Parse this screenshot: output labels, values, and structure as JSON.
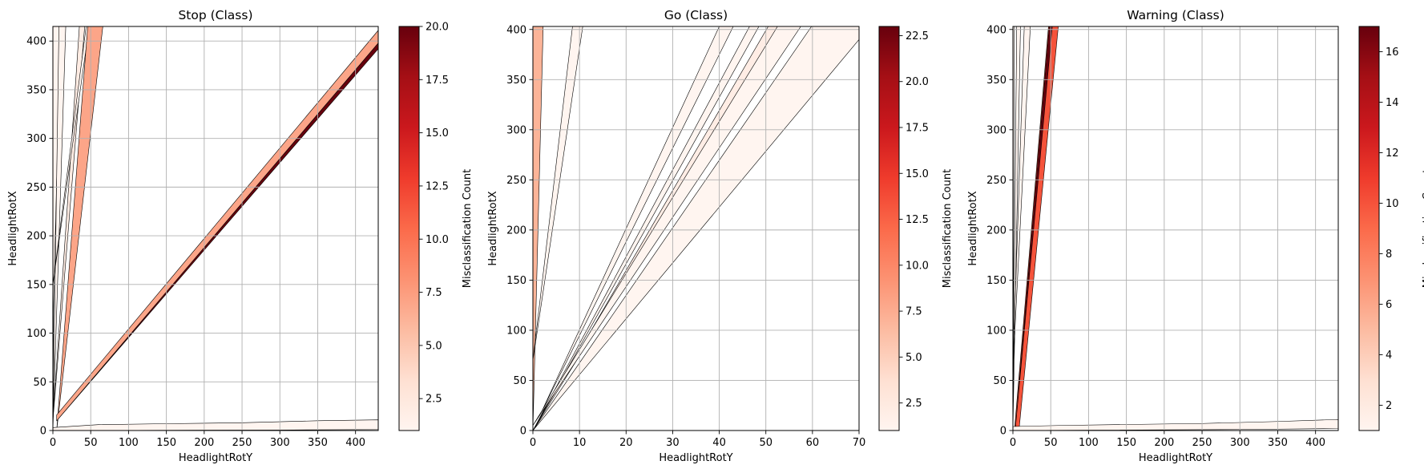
{
  "figure": {
    "colorbar_label": "Misclassification Count",
    "colormap": [
      "#fff5f0",
      "#fee0d2",
      "#fcbba1",
      "#fc9272",
      "#fb6a4a",
      "#ef3b2c",
      "#cb181d",
      "#a50f15",
      "#67000d"
    ]
  },
  "chart_data": [
    {
      "type": "area",
      "title": "Stop (Class)",
      "xlabel": "HeadlightRotY",
      "ylabel": "HeadlightRotX",
      "xlim": [
        0,
        430
      ],
      "ylim": [
        0,
        415
      ],
      "xticks": [
        0,
        50,
        100,
        150,
        200,
        250,
        300,
        350,
        400
      ],
      "yticks": [
        0,
        50,
        100,
        150,
        200,
        250,
        300,
        350,
        400
      ],
      "grid": true,
      "colorbar": {
        "min": 1,
        "max": 20,
        "ticks": [
          2.5,
          5.0,
          7.5,
          10.0,
          12.5,
          15.0,
          17.5,
          20.0
        ]
      },
      "regions": [
        {
          "count": 1,
          "points": [
            [
              0,
              0
            ],
            [
              0,
              415
            ],
            [
              3,
              415
            ]
          ]
        },
        {
          "count": 1,
          "points": [
            [
              0,
              100
            ],
            [
              0,
              415
            ],
            [
              10,
              415
            ]
          ]
        },
        {
          "count": 1,
          "points": [
            [
              0,
              0
            ],
            [
              8,
              415
            ],
            [
              17,
              415
            ]
          ]
        },
        {
          "count": 2,
          "points": [
            [
              0,
              10
            ],
            [
              35,
              415
            ],
            [
              42,
              415
            ]
          ]
        },
        {
          "count": 1,
          "points": [
            [
              0,
              150
            ],
            [
              44,
              415
            ],
            [
              48,
              415
            ]
          ]
        },
        {
          "count": 7,
          "points": [
            [
              5,
              0
            ],
            [
              46,
              415
            ],
            [
              66,
              415
            ]
          ]
        },
        {
          "count": 20,
          "points": [
            [
              5,
              10
            ],
            [
              430,
              392
            ],
            [
              430,
              398
            ]
          ]
        },
        {
          "count": 7,
          "points": [
            [
              5,
              10
            ],
            [
              5,
              16
            ],
            [
              430,
              411
            ],
            [
              430,
              398
            ]
          ]
        },
        {
          "count": 1,
          "points": [
            [
              0,
              3
            ],
            [
              60,
              6
            ],
            [
              150,
              7
            ],
            [
              250,
              8
            ],
            [
              350,
              10
            ],
            [
              430,
              11
            ],
            [
              430,
              1
            ],
            [
              300,
              0.5
            ],
            [
              0,
              0
            ]
          ]
        }
      ]
    },
    {
      "type": "area",
      "title": "Go (Class)",
      "xlabel": "HeadlightRotY",
      "ylabel": "HeadlightRotX",
      "xlim": [
        0,
        70
      ],
      "ylim": [
        0,
        403
      ],
      "xticks": [
        0,
        10,
        20,
        30,
        40,
        50,
        60,
        70
      ],
      "yticks": [
        0,
        50,
        100,
        150,
        200,
        250,
        300,
        350,
        400
      ],
      "grid": true,
      "colorbar": {
        "min": 1,
        "max": 23,
        "ticks": [
          2.5,
          5.0,
          7.5,
          10.0,
          12.5,
          15.0,
          17.5,
          20.0,
          22.5
        ]
      },
      "regions": [
        {
          "count": 7,
          "points": [
            [
              0,
              0
            ],
            [
              0,
              403
            ],
            [
              2.2,
              403
            ]
          ]
        },
        {
          "count": 1,
          "points": [
            [
              0,
              70
            ],
            [
              8.5,
              403
            ],
            [
              10.7,
              403
            ]
          ]
        },
        {
          "count": 1,
          "points": [
            [
              0,
              0
            ],
            [
              46.5,
              403
            ],
            [
              48.5,
              403
            ]
          ]
        },
        {
          "count": 2,
          "points": [
            [
              0,
              0
            ],
            [
              50.5,
              403
            ],
            [
              54,
              403
            ]
          ]
        },
        {
          "count": 1,
          "points": [
            [
              0,
              5
            ],
            [
              52.5,
              403
            ],
            [
              57.5,
              403
            ]
          ]
        },
        {
          "count": 1,
          "points": [
            [
              0,
              0
            ],
            [
              59.8,
              403
            ],
            [
              70,
              403
            ],
            [
              70,
              390
            ]
          ]
        },
        {
          "count": 1,
          "points": [
            [
              2,
              20
            ],
            [
              40,
              403
            ],
            [
              43,
              403
            ]
          ]
        }
      ]
    },
    {
      "type": "area",
      "title": "Warning (Class)",
      "xlabel": "HeadlightRotY",
      "ylabel": "HeadlightRotX",
      "xlim": [
        0,
        430
      ],
      "ylim": [
        0,
        403
      ],
      "xticks": [
        0,
        50,
        100,
        150,
        200,
        250,
        300,
        350,
        400
      ],
      "yticks": [
        0,
        50,
        100,
        150,
        200,
        250,
        300,
        350,
        400
      ],
      "grid": true,
      "colorbar": {
        "min": 1,
        "max": 17,
        "ticks": [
          2,
          4,
          6,
          8,
          10,
          12,
          14,
          16
        ]
      },
      "regions": [
        {
          "count": 1,
          "points": [
            [
              0,
              0
            ],
            [
              0,
              403
            ],
            [
              2,
              403
            ]
          ]
        },
        {
          "count": 1,
          "points": [
            [
              0,
              0
            ],
            [
              5,
              403
            ],
            [
              10,
              403
            ]
          ]
        },
        {
          "count": 1,
          "points": [
            [
              0,
              60
            ],
            [
              15,
              403
            ],
            [
              23,
              403
            ]
          ]
        },
        {
          "count": 10,
          "points": [
            [
              2,
              0
            ],
            [
              47,
              403
            ],
            [
              60,
              403
            ],
            [
              8,
              0
            ]
          ]
        },
        {
          "count": 17,
          "points": [
            [
              3,
              0
            ],
            [
              48,
              403
            ],
            [
              52,
              403
            ]
          ]
        },
        {
          "count": 1,
          "points": [
            [
              0,
              4
            ],
            [
              60,
              5
            ],
            [
              150,
              6
            ],
            [
              250,
              7
            ],
            [
              350,
              9
            ],
            [
              430,
              11
            ],
            [
              430,
              2
            ],
            [
              300,
              1
            ],
            [
              0,
              0
            ]
          ]
        }
      ]
    }
  ]
}
